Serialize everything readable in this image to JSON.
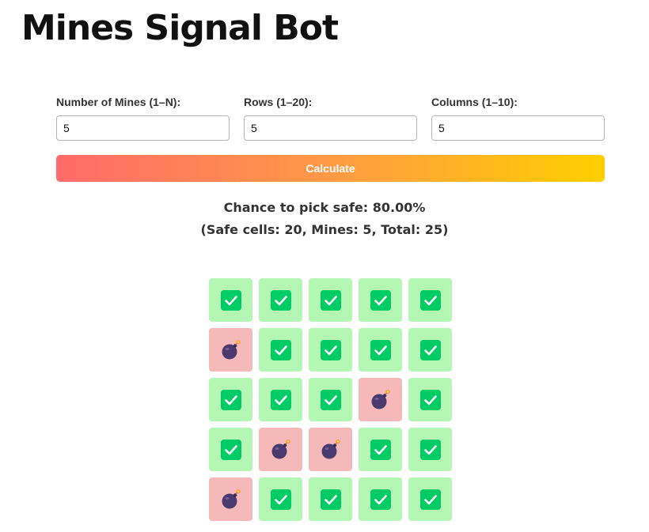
{
  "header": {
    "title": "Mines Signal Bot"
  },
  "form": {
    "mines": {
      "label": "Number of Mines (1–N):",
      "value": "5"
    },
    "rows": {
      "label": "Rows (1–20):",
      "value": "5"
    },
    "columns": {
      "label": "Columns (1–10):",
      "value": "5"
    },
    "calculate_label": "Calculate"
  },
  "result": {
    "chance_line": "Chance to pick safe: 80.00%",
    "summary_line": "(Safe cells: 20, Mines: 5, Total: 25)"
  },
  "grid": {
    "rows": 5,
    "columns": 5,
    "cells": [
      [
        "safe",
        "safe",
        "safe",
        "safe",
        "safe"
      ],
      [
        "mine",
        "safe",
        "safe",
        "safe",
        "safe"
      ],
      [
        "safe",
        "safe",
        "safe",
        "mine",
        "safe"
      ],
      [
        "safe",
        "mine",
        "mine",
        "safe",
        "safe"
      ],
      [
        "mine",
        "safe",
        "safe",
        "safe",
        "safe"
      ]
    ],
    "icons": {
      "safe": "check-icon",
      "mine": "bomb-icon"
    }
  },
  "colors": {
    "safe_cell": "#b4f7b4",
    "mine_cell": "#f6b9b9",
    "check_badge": "#00cc66",
    "bomb_body": "#4b3a6e",
    "fuse_spark": "#ff9933",
    "button_gradient_start": "#ff6a6a",
    "button_gradient_end": "#ffcf00"
  }
}
